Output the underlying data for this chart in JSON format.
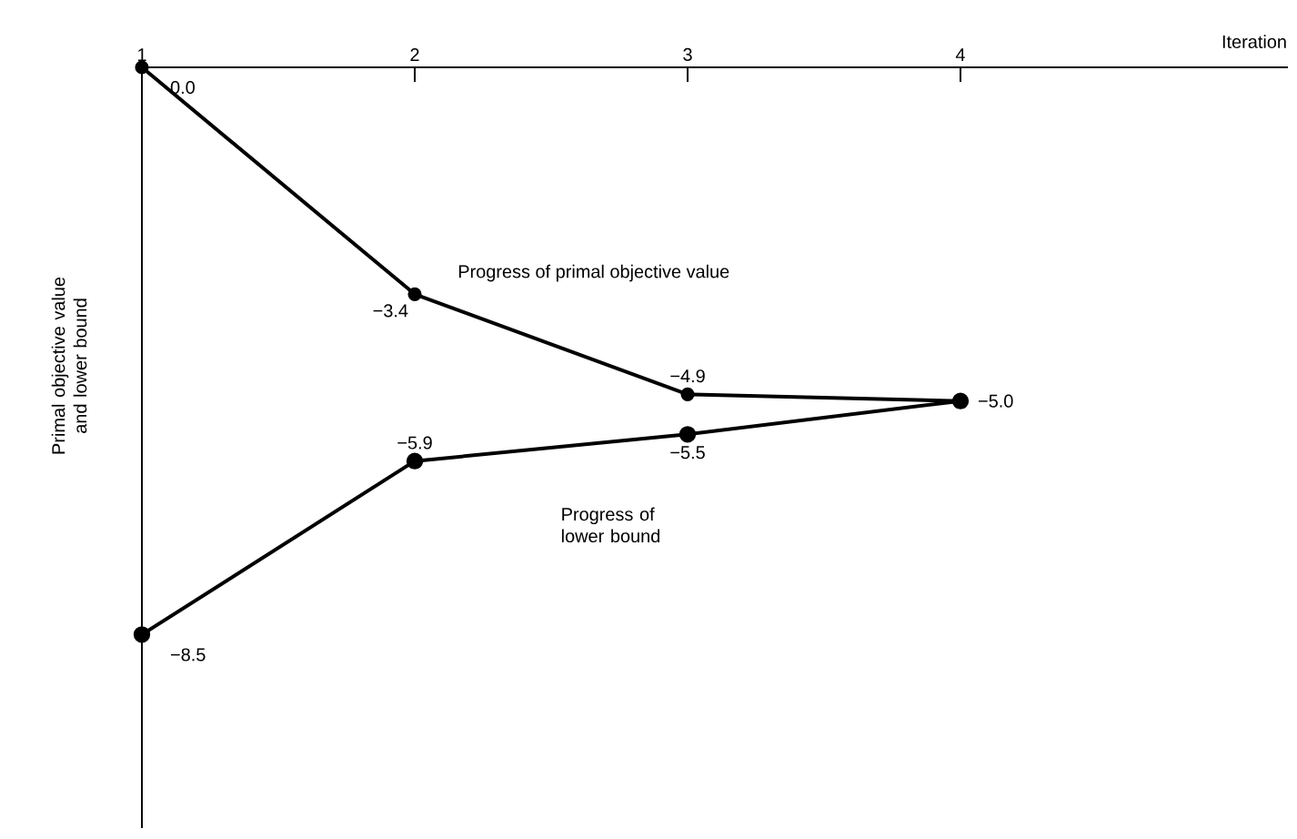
{
  "chart_data": {
    "type": "line",
    "xlabel": "Iteration",
    "ylabel": "Primal objective value and lower bound",
    "x": [
      1,
      2,
      3,
      4
    ],
    "xlim": [
      1,
      5.2
    ],
    "xticks": [
      1,
      2,
      3,
      4
    ],
    "ylim": [
      -11.4,
      0
    ],
    "tick_labels": "x",
    "marker": "circle",
    "line_style": "solid",
    "series": [
      {
        "color": "#000000",
        "values": [
          0.0,
          -3.4,
          -4.9,
          -5.0
        ],
        "value_labels": [
          "0.0",
          "−3.4",
          "−4.9",
          "−5.0"
        ]
      },
      {
        "color": "#000000",
        "values": [
          -8.5,
          -5.9,
          -5.5,
          -5.0
        ],
        "value_labels": [
          "−8.5",
          "−5.9",
          "−5.5",
          null
        ]
      }
    ],
    "annotations": [
      "Progress of primal objective value",
      "Progress of lower bound"
    ]
  }
}
